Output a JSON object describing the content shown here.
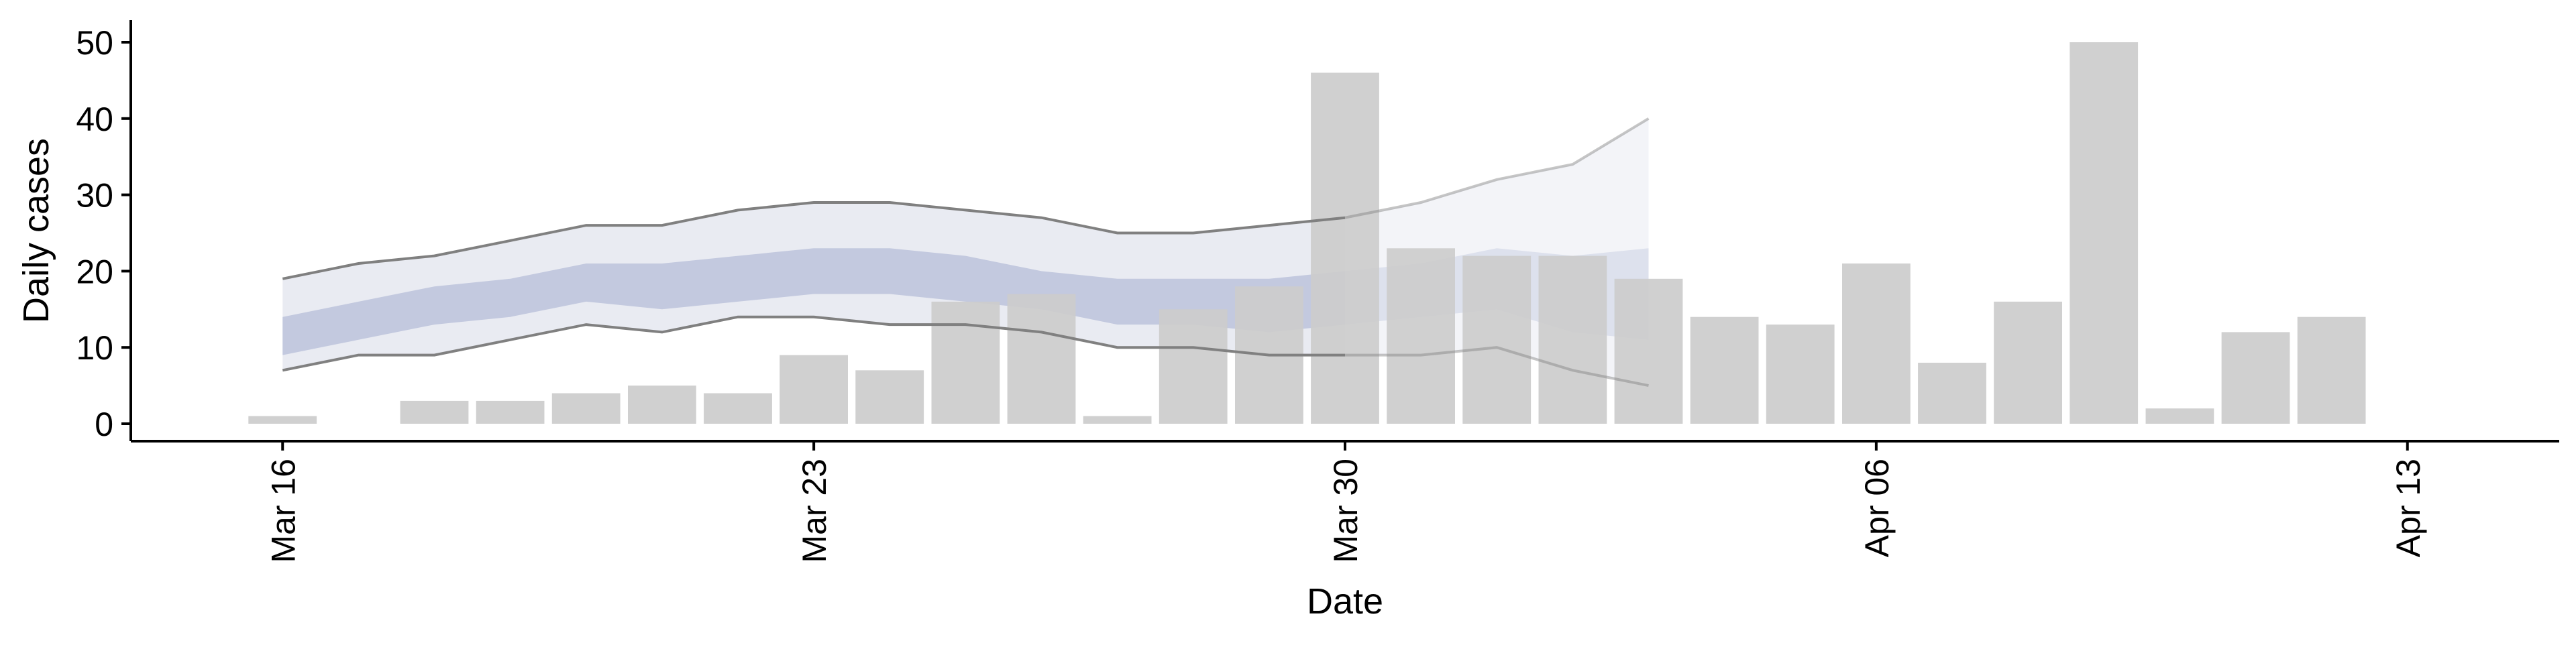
{
  "chart_data": {
    "type": "bar",
    "title": "",
    "xlabel": "Date",
    "ylabel": "Daily cases",
    "ylim": [
      0,
      52
    ],
    "xlim": [
      "2020-03-14",
      "2020-04-15"
    ],
    "grid": false,
    "y_ticks": [
      0,
      10,
      20,
      30,
      40,
      50
    ],
    "x_ticks": [
      {
        "date": "2020-03-16",
        "label": "Mar 16"
      },
      {
        "date": "2020-03-23",
        "label": "Mar 23"
      },
      {
        "date": "2020-03-30",
        "label": "Mar 30"
      },
      {
        "date": "2020-04-06",
        "label": "Apr 06"
      },
      {
        "date": "2020-04-13",
        "label": "Apr 13"
      }
    ],
    "bars": {
      "color": "#cccccc",
      "dates": [
        "2020-03-16",
        "2020-03-17",
        "2020-03-18",
        "2020-03-19",
        "2020-03-20",
        "2020-03-21",
        "2020-03-22",
        "2020-03-23",
        "2020-03-24",
        "2020-03-25",
        "2020-03-26",
        "2020-03-27",
        "2020-03-28",
        "2020-03-29",
        "2020-03-30",
        "2020-03-31",
        "2020-04-01",
        "2020-04-02",
        "2020-04-03",
        "2020-04-04",
        "2020-04-05",
        "2020-04-06",
        "2020-04-07",
        "2020-04-08",
        "2020-04-09",
        "2020-04-10",
        "2020-04-11",
        "2020-04-12"
      ],
      "values": [
        1,
        0,
        3,
        3,
        4,
        5,
        4,
        9,
        7,
        16,
        17,
        1,
        15,
        18,
        46,
        23,
        22,
        22,
        19,
        14,
        13,
        21,
        8,
        16,
        50,
        2,
        12,
        14
      ]
    },
    "bands": {
      "dates": [
        "2020-03-16",
        "2020-03-17",
        "2020-03-18",
        "2020-03-19",
        "2020-03-20",
        "2020-03-21",
        "2020-03-22",
        "2020-03-23",
        "2020-03-24",
        "2020-03-25",
        "2020-03-26",
        "2020-03-27",
        "2020-03-28",
        "2020-03-29",
        "2020-03-30",
        "2020-03-31",
        "2020-04-01",
        "2020-04-02",
        "2020-04-03"
      ],
      "outer_lower": [
        7,
        9,
        9,
        11,
        13,
        12,
        14,
        14,
        13,
        13,
        12,
        10,
        10,
        9,
        9,
        9,
        10,
        7,
        5
      ],
      "outer_upper": [
        19,
        21,
        22,
        24,
        26,
        26,
        28,
        29,
        29,
        28,
        27,
        25,
        25,
        26,
        27,
        29,
        32,
        34,
        40
      ],
      "inner_lower": [
        9,
        11,
        13,
        14,
        16,
        15,
        16,
        17,
        17,
        16,
        15,
        13,
        13,
        12,
        13,
        14,
        15,
        12,
        11
      ],
      "inner_upper": [
        14,
        16,
        18,
        19,
        21,
        21,
        22,
        23,
        23,
        22,
        20,
        19,
        19,
        19,
        20,
        21,
        23,
        22,
        23
      ],
      "estimate_until": "2020-03-30",
      "outer_color": "#e9ebf2",
      "inner_color": "#c3c9df",
      "line_color": "#808080"
    }
  }
}
